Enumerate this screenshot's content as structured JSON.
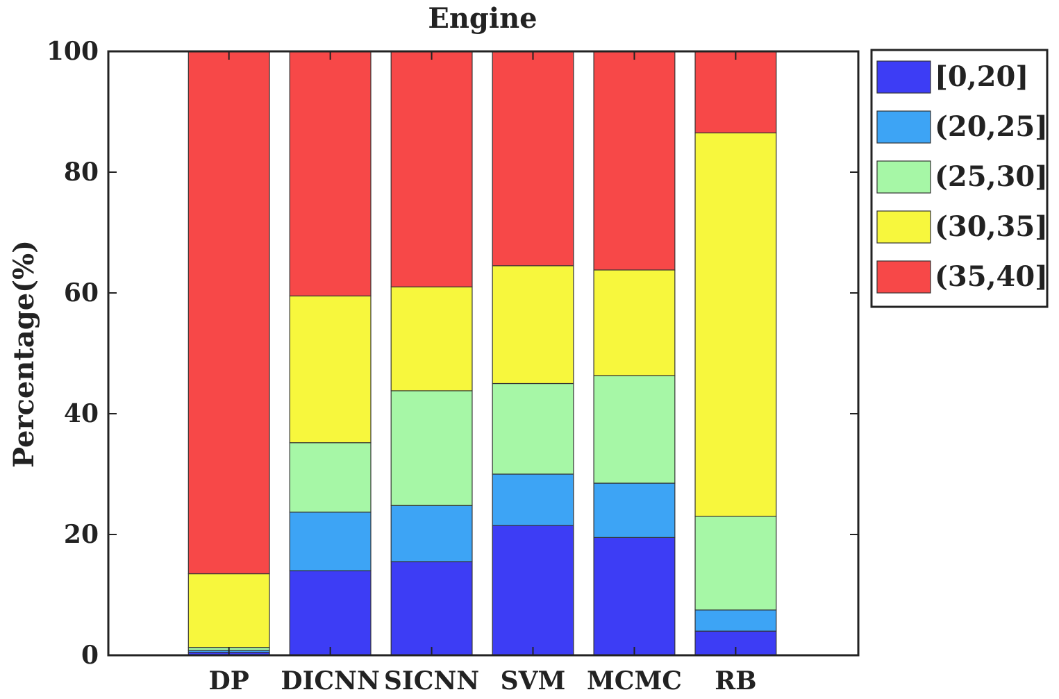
{
  "chart_data": {
    "type": "bar",
    "stacked": true,
    "title": "Engine",
    "xlabel": "",
    "ylabel": "Percentage(%)",
    "ylim": [
      0,
      100
    ],
    "yticks": [
      0,
      20,
      40,
      60,
      80,
      100
    ],
    "grid": false,
    "legend_position": "outside-top-right",
    "categories": [
      "DP",
      "DICNN",
      "SICNN",
      "SVM",
      "MCMC",
      "RB"
    ],
    "series": [
      {
        "name": "[0,20]",
        "color": "#3d3df5",
        "values": [
          0.5,
          14.0,
          15.5,
          21.5,
          19.5,
          4.0
        ]
      },
      {
        "name": "(20,25]",
        "color": "#3da4f5",
        "values": [
          0.3,
          9.7,
          9.3,
          8.5,
          9.0,
          3.5
        ]
      },
      {
        "name": "(25,30]",
        "color": "#a6f7a6",
        "values": [
          0.5,
          11.5,
          19.0,
          15.0,
          17.8,
          15.5
        ]
      },
      {
        "name": "(30,35]",
        "color": "#f7f73d",
        "values": [
          12.2,
          24.3,
          17.2,
          19.5,
          17.5,
          63.5
        ]
      },
      {
        "name": "(35,40]",
        "color": "#f74848",
        "values": [
          86.5,
          40.5,
          39.0,
          35.5,
          36.2,
          13.5
        ]
      }
    ]
  }
}
